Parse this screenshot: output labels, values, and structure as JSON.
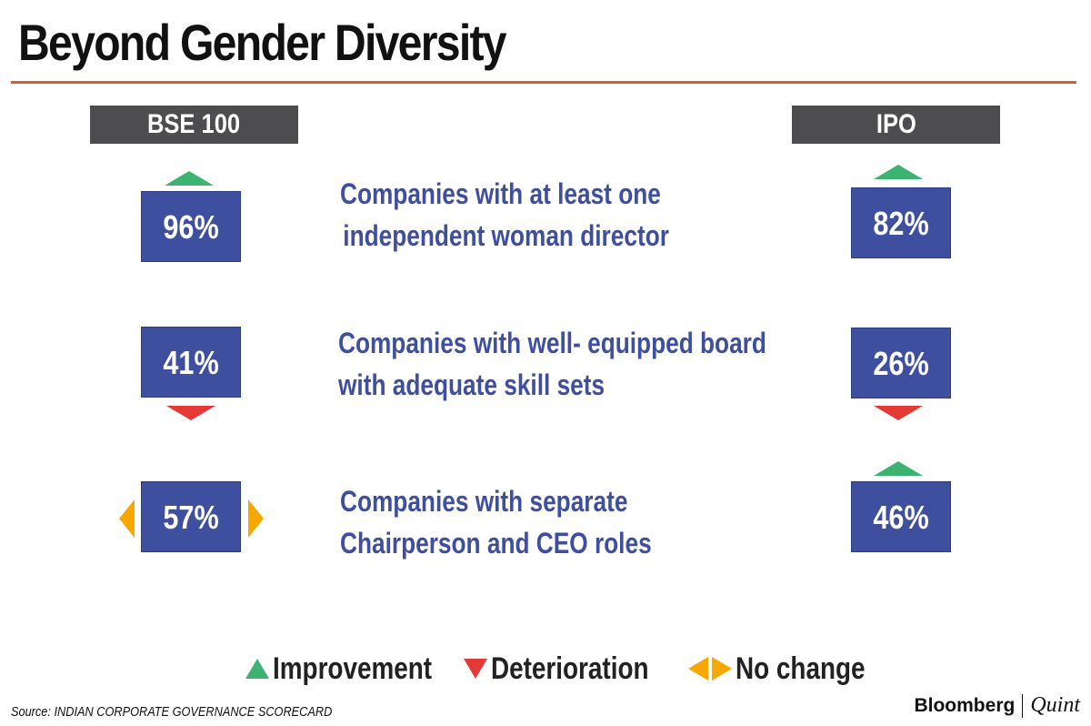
{
  "title": "Beyond Gender Diversity",
  "columns": {
    "left": "BSE 100",
    "right": "IPO"
  },
  "rows": [
    {
      "line1": "Companies with at least one",
      "line2": "independent woman director",
      "bse": {
        "value": "96%",
        "trend": "improvement"
      },
      "ipo": {
        "value": "82%",
        "trend": "improvement"
      }
    },
    {
      "line1": "Companies with well- equipped board",
      "line2": "with adequate skill sets",
      "bse": {
        "value": "41%",
        "trend": "deterioration"
      },
      "ipo": {
        "value": "26%",
        "trend": "deterioration"
      }
    },
    {
      "line1": "Companies with separate",
      "line2": "Chairperson and CEO roles",
      "bse": {
        "value": "57%",
        "trend": "no-change"
      },
      "ipo": {
        "value": "46%",
        "trend": "improvement"
      }
    }
  ],
  "legend": {
    "improvement": "Improvement",
    "deterioration": "Deterioration",
    "no_change": "No change"
  },
  "colors": {
    "accent_rule": "#e35b2b",
    "box": "#3f4fa0",
    "header": "#4d4d4f",
    "improvement": "#3cb371",
    "deterioration": "#e53935",
    "no_change": "#f6a800"
  },
  "source": "Source: INDIAN CORPORATE GOVERNANCE SCORECARD",
  "brand": {
    "primary": "Bloomberg",
    "secondary": "Quint"
  },
  "chart_data": {
    "type": "table",
    "columns": [
      "BSE 100",
      "IPO"
    ],
    "rows": [
      {
        "label": "Companies with at least one independent woman director",
        "BSE 100": 96,
        "IPO": 82,
        "trend": {
          "BSE 100": "improvement",
          "IPO": "improvement"
        }
      },
      {
        "label": "Companies with well- equipped board with adequate skill sets",
        "BSE 100": 41,
        "IPO": 26,
        "trend": {
          "BSE 100": "deterioration",
          "IPO": "deterioration"
        }
      },
      {
        "label": "Companies with separate Chairperson and CEO roles",
        "BSE 100": 57,
        "IPO": 46,
        "trend": {
          "BSE 100": "no-change",
          "IPO": "improvement"
        }
      }
    ],
    "unit": "%",
    "legend": [
      "Improvement",
      "Deterioration",
      "No change"
    ]
  }
}
